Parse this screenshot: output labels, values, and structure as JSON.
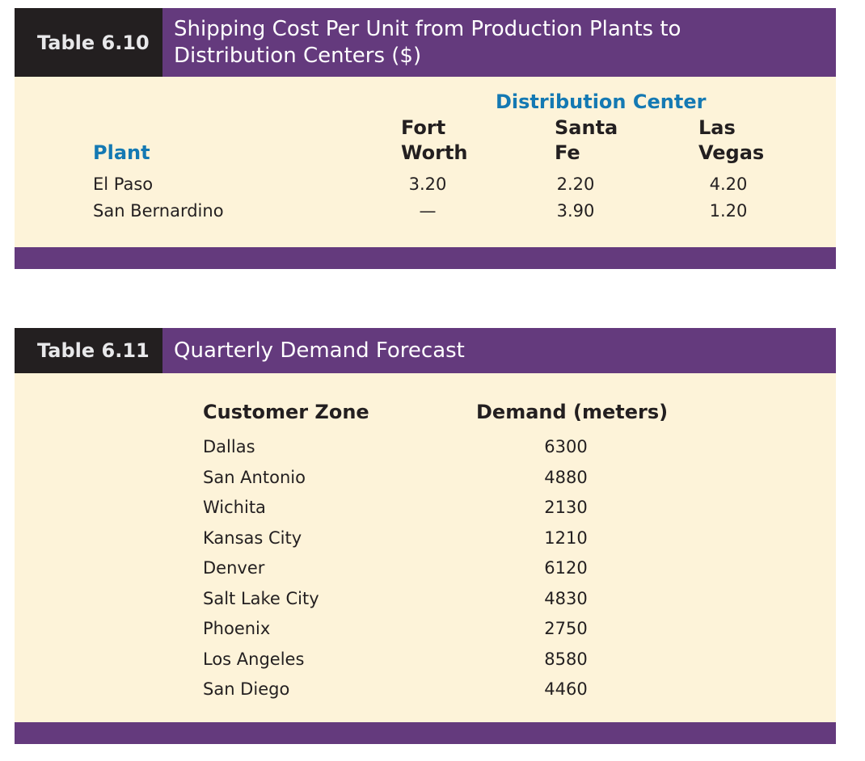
{
  "table_610": {
    "label": "Table 6.10",
    "title_line1": "Shipping Cost Per Unit from Production Plants to",
    "title_line2": "Distribution Centers ($)",
    "group_header": "Distribution Center",
    "plant_header": "Plant",
    "columns": [
      {
        "line1": "Fort",
        "line2": "Worth"
      },
      {
        "line1": "Santa",
        "line2": "Fe"
      },
      {
        "line1": "Las",
        "line2": "Vegas"
      }
    ],
    "rows": [
      {
        "plant": "El Paso",
        "values": [
          "3.20",
          "2.20",
          "4.20"
        ]
      },
      {
        "plant": "San Bernardino",
        "values": [
          "—",
          "3.90",
          "1.20"
        ]
      }
    ]
  },
  "table_611": {
    "label": "Table 6.11",
    "title": "Quarterly Demand Forecast",
    "col_zone": "Customer Zone",
    "col_demand": "Demand (meters)",
    "rows": [
      {
        "zone": "Dallas",
        "demand": "6300"
      },
      {
        "zone": "San Antonio",
        "demand": "4880"
      },
      {
        "zone": "Wichita",
        "demand": "2130"
      },
      {
        "zone": "Kansas City",
        "demand": "1210"
      },
      {
        "zone": "Denver",
        "demand": "6120"
      },
      {
        "zone": "Salt Lake City",
        "demand": "4830"
      },
      {
        "zone": "Phoenix",
        "demand": "2750"
      },
      {
        "zone": "Los Angeles",
        "demand": "8580"
      },
      {
        "zone": "San Diego",
        "demand": "4460"
      }
    ]
  },
  "colors": {
    "purple": "#643a7d",
    "label_black": "#231f20",
    "cream": "#fdf3d9",
    "blue_heading": "#1479b3"
  }
}
